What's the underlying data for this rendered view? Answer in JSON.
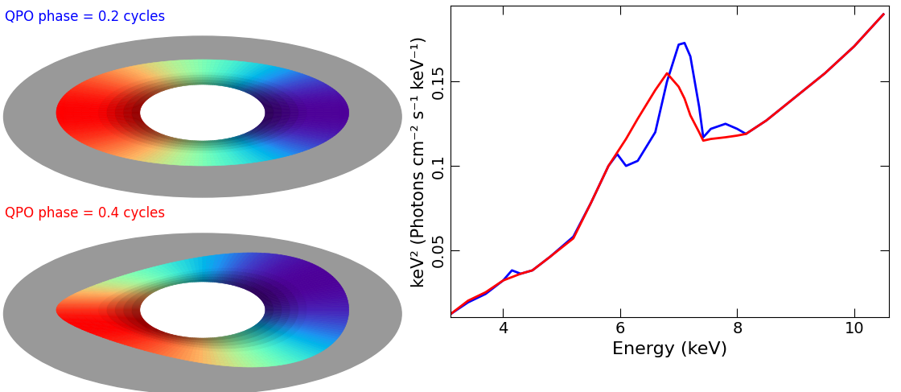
{
  "chart_data": {
    "type": "line",
    "xlabel": "Energy (keV)",
    "ylabel": "keV² (Photons cm⁻² s⁻¹ keV⁻¹)",
    "x": [
      3.1,
      3.4,
      3.7,
      4.0,
      4.15,
      4.3,
      4.5,
      4.8,
      5.2,
      5.5,
      5.8,
      5.95,
      6.1,
      6.3,
      6.6,
      6.8,
      7.0,
      7.1,
      7.2,
      7.35,
      7.42,
      7.55,
      7.8,
      8.0,
      8.15,
      8.5,
      9.0,
      9.5,
      10.0,
      10.5
    ],
    "series": [
      {
        "name": "QPO phase = 0.2 cycles",
        "color": "#0000ff",
        "values": [
          0.012,
          0.019,
          0.024,
          0.032,
          0.038,
          0.036,
          0.038,
          0.046,
          0.058,
          0.078,
          0.1,
          0.107,
          0.1,
          0.103,
          0.12,
          0.15,
          0.172,
          0.173,
          0.165,
          0.135,
          0.117,
          0.122,
          0.125,
          0.122,
          0.119,
          0.127,
          0.141,
          0.155,
          0.171,
          0.19
        ]
      },
      {
        "name": "QPO phase = 0.4 cycles",
        "color": "#ff0000",
        "values": [
          0.012,
          0.02,
          0.025,
          0.032,
          0.034,
          0.036,
          0.038,
          0.046,
          0.057,
          0.078,
          0.1,
          0.108,
          0.116,
          0.128,
          0.145,
          0.155,
          0.147,
          0.14,
          0.13,
          0.12,
          0.115,
          0.116,
          0.117,
          0.118,
          0.119,
          0.127,
          0.141,
          0.155,
          0.171,
          0.19
        ]
      }
    ],
    "xlim": [
      3.1,
      10.6
    ],
    "ylim": [
      0.01,
      0.195
    ],
    "xticks": [
      4,
      6,
      8,
      10
    ],
    "yticks": [
      0.05,
      0.1,
      0.15
    ]
  }
}
